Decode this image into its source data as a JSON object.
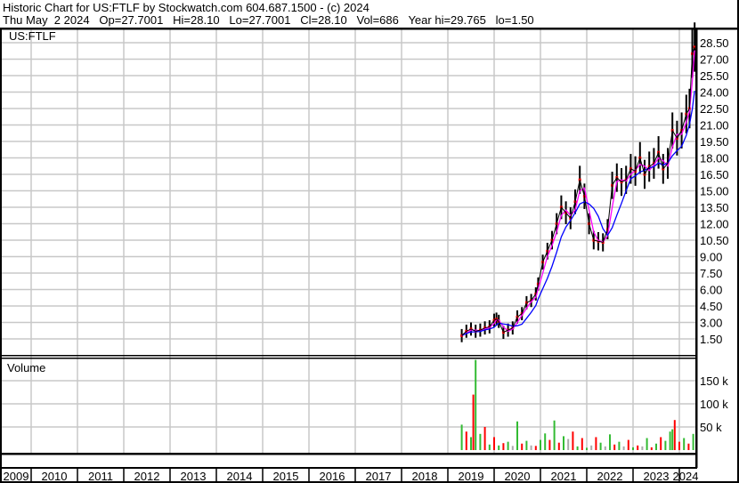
{
  "header": {
    "title": "Historic Chart for US:FTLF by Stockwatch.com 604.687.1500 - (c) 2024",
    "quote": "Thu May  2 2024   Op=27.7001   Hi=28.10   Lo=27.7001   Cl=28.10   Vol=686   Year hi=29.765   lo=1.50"
  },
  "colors": {
    "price": "#000000",
    "close_marks": "#ff0000",
    "ma_short": "#ff00ff",
    "ma_long": "#0000ff",
    "vol_up": "#33bb33",
    "vol_down": "#ff0000",
    "vol_flat": "#aaaaaa",
    "grid": "#c8c8c8"
  },
  "chart_data": [
    {
      "type": "line",
      "symbol": "US:FTLF",
      "x_ticks": [
        "2009",
        "2010",
        "2011",
        "2012",
        "2013",
        "2014",
        "2015",
        "2016",
        "2017",
        "2018",
        "2019",
        "2020",
        "2021",
        "2022",
        "2023",
        "2024"
      ],
      "y_ticks": [
        "1.50",
        "3.00",
        "4.50",
        "6.00",
        "7.50",
        "9.00",
        "10.50",
        "12.00",
        "13.50",
        "15.00",
        "16.50",
        "18.00",
        "19.50",
        "21.00",
        "22.50",
        "24.00",
        "25.50",
        "27.00",
        "28.50"
      ],
      "ylim": [
        1.5,
        28.5
      ],
      "grid": true,
      "x": [
        2019.3,
        2019.4,
        2019.5,
        2019.6,
        2019.7,
        2019.8,
        2019.9,
        2020.0,
        2020.05,
        2020.1,
        2020.2,
        2020.3,
        2020.4,
        2020.5,
        2020.6,
        2020.7,
        2020.8,
        2020.9,
        2020.95,
        2021.05,
        2021.15,
        2021.25,
        2021.35,
        2021.45,
        2021.55,
        2021.65,
        2021.75,
        2021.85,
        2021.95,
        2022.05,
        2022.15,
        2022.25,
        2022.35,
        2022.45,
        2022.55,
        2022.65,
        2022.75,
        2022.85,
        2022.95,
        2023.05,
        2023.15,
        2023.25,
        2023.35,
        2023.45,
        2023.55,
        2023.65,
        2023.75,
        2023.85,
        2023.95,
        2024.05,
        2024.15,
        2024.22,
        2024.28,
        2024.33
      ],
      "close": [
        1.8,
        2.2,
        2.4,
        2.2,
        2.3,
        2.5,
        2.6,
        3.2,
        3.3,
        3.1,
        2.1,
        2.3,
        2.5,
        3.5,
        3.8,
        4.8,
        5.0,
        5.6,
        6.5,
        8.5,
        9.5,
        10.5,
        12.0,
        13.5,
        13.0,
        12.5,
        14.0,
        16.0,
        14.5,
        12.0,
        10.5,
        10.4,
        10.3,
        11.5,
        15.5,
        16.2,
        15.8,
        16.0,
        17.0,
        16.8,
        18.0,
        16.5,
        17.2,
        17.5,
        18.5,
        17.0,
        17.5,
        20.5,
        19.8,
        20.5,
        22.0,
        22.5,
        27.5,
        28.1
      ]
    },
    {
      "type": "bar",
      "title": "Volume",
      "y_ticks": [
        "50 k",
        "100 k",
        "150 k"
      ],
      "ylim": [
        0,
        200000
      ],
      "x": [
        2019.3,
        2019.4,
        2019.5,
        2019.55,
        2019.6,
        2019.7,
        2019.8,
        2019.9,
        2020.0,
        2020.1,
        2020.2,
        2020.3,
        2020.4,
        2020.5,
        2020.6,
        2020.7,
        2020.8,
        2020.9,
        2021.0,
        2021.1,
        2021.2,
        2021.3,
        2021.4,
        2021.5,
        2021.6,
        2021.7,
        2021.8,
        2021.9,
        2022.0,
        2022.1,
        2022.2,
        2022.3,
        2022.4,
        2022.5,
        2022.6,
        2022.7,
        2022.8,
        2022.9,
        2023.0,
        2023.1,
        2023.2,
        2023.3,
        2023.4,
        2023.5,
        2023.6,
        2023.7,
        2023.8,
        2023.85,
        2023.9,
        2024.0,
        2024.1,
        2024.2,
        2024.3
      ],
      "volume": [
        55000,
        40000,
        28000,
        120000,
        195000,
        35000,
        50000,
        12000,
        28000,
        10000,
        15000,
        18000,
        9000,
        62000,
        14000,
        20000,
        10000,
        9000,
        22000,
        36000,
        22000,
        64000,
        16000,
        30000,
        24000,
        40000,
        8000,
        26000,
        5000,
        10000,
        28000,
        16000,
        8000,
        34000,
        12000,
        18000,
        8000,
        22000,
        6000,
        10000,
        8000,
        26000,
        6000,
        14000,
        28000,
        20000,
        40000,
        45000,
        65000,
        18000,
        26000,
        14000,
        35000
      ],
      "direction": [
        "up",
        "down",
        "up",
        "down",
        "up",
        "up",
        "down",
        "up",
        "down",
        "up",
        "down",
        "up",
        "flat",
        "up",
        "down",
        "up",
        "flat",
        "down",
        "up",
        "up",
        "down",
        "up",
        "down",
        "up",
        "flat",
        "down",
        "up",
        "down",
        "up",
        "flat",
        "down",
        "up",
        "flat",
        "up",
        "down",
        "up",
        "flat",
        "down",
        "up",
        "down",
        "flat",
        "up",
        "down",
        "up",
        "down",
        "up",
        "up",
        "up",
        "down",
        "down",
        "up",
        "down",
        "up"
      ]
    }
  ]
}
